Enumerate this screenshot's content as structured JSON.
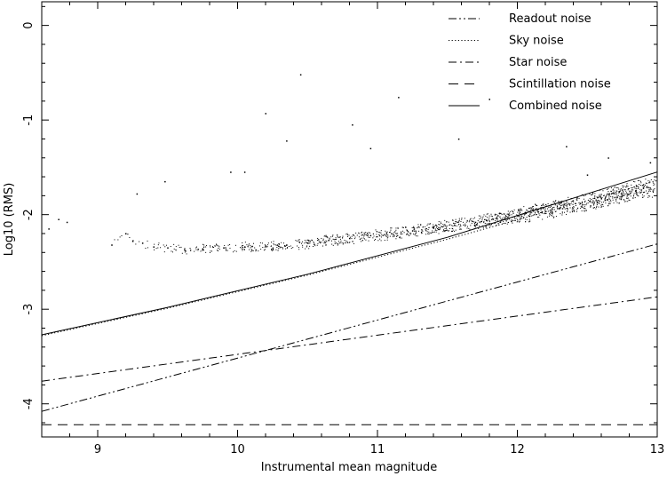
{
  "chart_data": {
    "type": "scatter",
    "title": "",
    "xlabel": "Instrumental mean magnitude",
    "ylabel": "Log10 (RMS)",
    "xlim": [
      8.6,
      13.0
    ],
    "ylim": [
      -4.35,
      0.25
    ],
    "x_ticks": [
      9,
      10,
      11,
      12,
      13
    ],
    "y_ticks": [
      0,
      -1,
      -2,
      -3,
      -4
    ],
    "legend_position": "top-right",
    "grid": false,
    "series": [
      {
        "name": "Readout noise",
        "style": "dash-dot-dot",
        "x": [
          8.6,
          13.0
        ],
        "y": [
          -4.08,
          -2.31
        ]
      },
      {
        "name": "Sky noise",
        "style": "dotted",
        "x": [
          8.6,
          9.5,
          10.5,
          11.5,
          12.5,
          13.0
        ],
        "y": [
          -3.28,
          -2.99,
          -2.64,
          -2.26,
          -1.85,
          -1.64
        ]
      },
      {
        "name": "Star noise",
        "style": "dash-dot",
        "x": [
          8.6,
          13.0
        ],
        "y": [
          -3.76,
          -2.87
        ]
      },
      {
        "name": "Scintillation noise",
        "style": "dashed",
        "x": [
          8.6,
          13.0
        ],
        "y": [
          -4.22,
          -4.22
        ]
      },
      {
        "name": "Combined noise",
        "style": "solid",
        "x": [
          8.6,
          9.5,
          10.5,
          11.5,
          12.5,
          13.0
        ],
        "y": [
          -3.27,
          -2.98,
          -2.63,
          -2.24,
          -1.78,
          -1.55
        ]
      }
    ],
    "scatter": {
      "name": "stars",
      "x": [
        8.65,
        8.72,
        8.78,
        9.1,
        9.2,
        9.25,
        9.32,
        9.4,
        9.5,
        9.62,
        9.75,
        9.9,
        10.05,
        10.2,
        10.35,
        10.5,
        10.65,
        10.8,
        10.95,
        11.1,
        11.25,
        11.4,
        11.55,
        11.7,
        11.85,
        12.0,
        12.15,
        12.3,
        12.45,
        12.6,
        12.75,
        12.9,
        9.28,
        9.48,
        9.95,
        10.05,
        10.2,
        10.35,
        10.45,
        10.82,
        10.95,
        11.15,
        11.58,
        11.8,
        12.35,
        12.65,
        12.5,
        12.95
      ],
      "y": [
        -2.15,
        -2.05,
        -2.08,
        -2.32,
        -2.2,
        -2.28,
        -2.3,
        -2.34,
        -2.35,
        -2.37,
        -2.36,
        -2.35,
        -2.34,
        -2.33,
        -2.32,
        -2.3,
        -2.27,
        -2.25,
        -2.22,
        -2.2,
        -2.17,
        -2.14,
        -2.11,
        -2.08,
        -2.04,
        -2.01,
        -1.97,
        -1.93,
        -1.88,
        -1.83,
        -1.78,
        -1.72,
        -1.78,
        -1.65,
        -1.55,
        -1.55,
        -0.93,
        -1.22,
        -0.52,
        -1.05,
        -1.3,
        -0.76,
        -1.2,
        -0.78,
        -1.28,
        -1.4,
        -1.58,
        -1.45
      ]
    }
  }
}
